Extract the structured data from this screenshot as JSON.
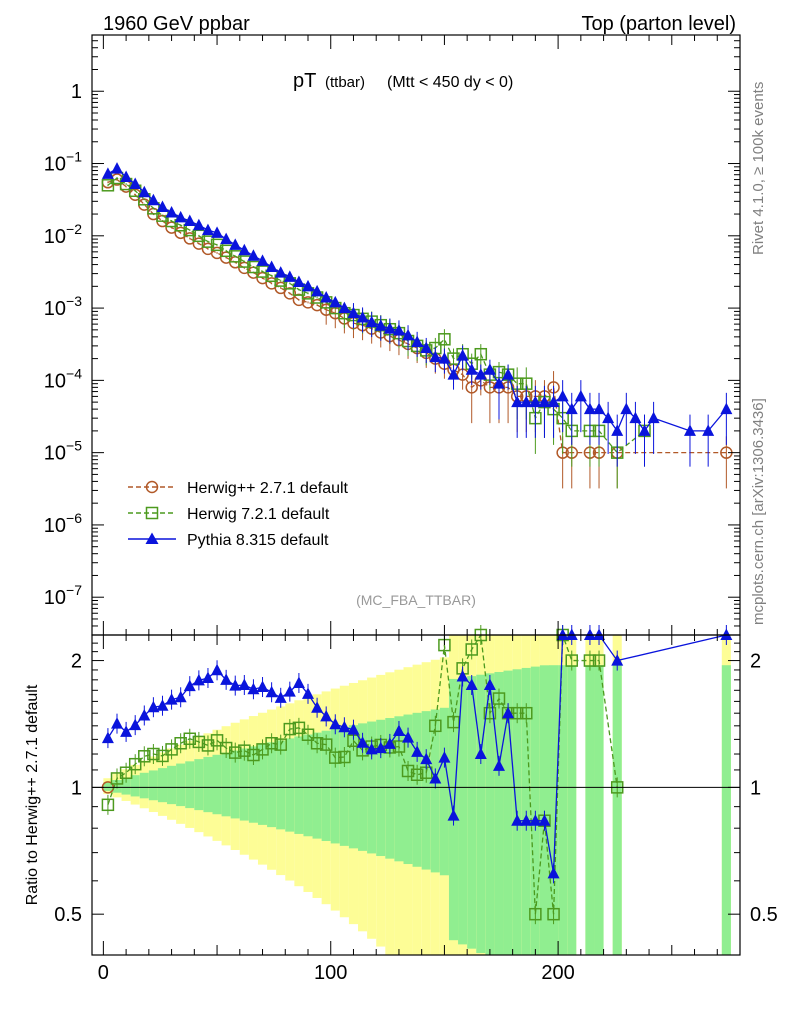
{
  "header": {
    "left_label": "1960 GeV ppbar",
    "right_label": "Top (parton level)"
  },
  "side_labels": {
    "rivet": "Rivet 4.1.0, ≥ 100k events",
    "mcplots": "mcplots.cern.ch [arXiv:1306.3436]"
  },
  "chart_data": {
    "type": "line",
    "title_main": "pT",
    "title_sub": "(ttbar)",
    "title_cut": "(Mtt < 450 dy < 0)",
    "analysis_tag": "(MC_FBA_TTBAR)",
    "ratio_ylabel": "Ratio to Herwig++ 2.7.1 default",
    "xlim": [
      -5,
      280
    ],
    "ylim_main": [
      3e-08,
      6
    ],
    "ylim_ratio": [
      0.4,
      2.3
    ],
    "y_log_main": true,
    "y_log_ratio": true,
    "x_ticks": [
      "0",
      "100",
      "200"
    ],
    "x_tick_values": [
      0,
      100,
      200
    ],
    "main_y_ticks": [
      {
        "v": 1,
        "mant": "1",
        "exp": ""
      },
      {
        "v": 0.1,
        "mant": "10",
        "exp": "−1"
      },
      {
        "v": 0.01,
        "mant": "10",
        "exp": "−2"
      },
      {
        "v": 0.001,
        "mant": "10",
        "exp": "−3"
      },
      {
        "v": 0.0001,
        "mant": "10",
        "exp": "−4"
      },
      {
        "v": 1e-05,
        "mant": "10",
        "exp": "−5"
      },
      {
        "v": 1e-06,
        "mant": "10",
        "exp": "−6"
      },
      {
        "v": 1e-07,
        "mant": "10",
        "exp": "−7"
      }
    ],
    "ratio_y_ticks": [
      {
        "v": 0.5,
        "label": "0.5"
      },
      {
        "v": 1,
        "label": "1"
      },
      {
        "v": 2,
        "label": "2"
      }
    ],
    "legend": [
      {
        "name": "Herwig++ 2.7.1 default",
        "color": "#b15928",
        "marker": "circle",
        "dash": true
      },
      {
        "name": "Herwig 7.2.1 default",
        "color": "#4c9a1e",
        "marker": "square",
        "dash": true
      },
      {
        "name": "Pythia 8.315 default",
        "color": "#0a14dc",
        "marker": "triangle",
        "dash": false
      }
    ],
    "series": [
      {
        "name": "Herwig++ 2.7.1 default",
        "x": [
          2,
          6,
          10,
          14,
          18,
          22,
          26,
          30,
          34,
          38,
          42,
          46,
          50,
          54,
          58,
          62,
          66,
          70,
          74,
          78,
          82,
          86,
          90,
          94,
          98,
          102,
          106,
          110,
          114,
          118,
          122,
          126,
          130,
          134,
          138,
          142,
          146,
          150,
          154,
          158,
          162,
          166,
          170,
          174,
          178,
          182,
          186,
          190,
          194,
          198,
          202,
          206,
          214,
          218,
          226,
          274
        ],
        "y": [
          0.055,
          0.06,
          0.048,
          0.037,
          0.027,
          0.02,
          0.016,
          0.013,
          0.011,
          0.0092,
          0.0078,
          0.0066,
          0.0058,
          0.005,
          0.0043,
          0.0036,
          0.0031,
          0.0026,
          0.0022,
          0.0019,
          0.0016,
          0.0013,
          0.0012,
          0.0011,
          0.00095,
          0.00085,
          0.00072,
          0.00062,
          0.00058,
          0.00052,
          0.00046,
          0.00041,
          0.00036,
          0.00032,
          0.00028,
          0.00024,
          0.0002,
          0.00017,
          0.00014,
          0.00012,
          8e-05,
          0.0001,
          8e-05,
          8e-05,
          8e-05,
          6e-05,
          6e-05,
          6e-05,
          6e-05,
          8e-05,
          1e-05,
          1e-05,
          1e-05,
          1e-05,
          1e-05,
          1e-05
        ]
      },
      {
        "name": "Herwig 7.2.1 default",
        "x": [
          2,
          6,
          10,
          14,
          18,
          22,
          26,
          30,
          34,
          38,
          42,
          46,
          50,
          54,
          58,
          62,
          66,
          70,
          74,
          78,
          82,
          86,
          90,
          94,
          98,
          102,
          106,
          110,
          114,
          118,
          122,
          126,
          130,
          134,
          138,
          142,
          146,
          150,
          154,
          158,
          162,
          166,
          170,
          174,
          178,
          182,
          186,
          190,
          194,
          198,
          202,
          206,
          214,
          218,
          226,
          238
        ],
        "y": [
          0.05,
          0.063,
          0.052,
          0.042,
          0.032,
          0.024,
          0.019,
          0.016,
          0.014,
          0.012,
          0.01,
          0.0083,
          0.0075,
          0.0062,
          0.0052,
          0.0044,
          0.0037,
          0.0032,
          0.0028,
          0.0024,
          0.0022,
          0.0018,
          0.0016,
          0.0014,
          0.0012,
          0.001,
          0.00085,
          0.0008,
          0.00071,
          0.00065,
          0.00058,
          0.00051,
          0.00045,
          0.00035,
          0.0003,
          0.00026,
          0.00028,
          0.00037,
          0.0002,
          0.00023,
          0.00017,
          0.00023,
          0.00012,
          0.00013,
          0.00012,
          9e-05,
          9e-05,
          3e-05,
          5e-05,
          4e-05,
          3e-05,
          2e-05,
          2e-05,
          2e-05,
          1e-05,
          2e-05
        ]
      },
      {
        "name": "Pythia 8.315 default",
        "x": [
          2,
          6,
          10,
          14,
          18,
          22,
          26,
          30,
          34,
          38,
          42,
          46,
          50,
          54,
          58,
          62,
          66,
          70,
          74,
          78,
          82,
          86,
          90,
          94,
          98,
          102,
          106,
          110,
          114,
          118,
          122,
          126,
          130,
          134,
          138,
          142,
          146,
          150,
          154,
          158,
          162,
          166,
          170,
          174,
          178,
          182,
          186,
          190,
          194,
          198,
          202,
          206,
          210,
          214,
          218,
          222,
          226,
          230,
          234,
          238,
          242,
          258,
          266,
          274
        ],
        "y": [
          0.072,
          0.085,
          0.065,
          0.052,
          0.04,
          0.031,
          0.025,
          0.021,
          0.018,
          0.016,
          0.014,
          0.012,
          0.011,
          0.009,
          0.0075,
          0.0063,
          0.0053,
          0.0045,
          0.0037,
          0.0031,
          0.0027,
          0.0023,
          0.002,
          0.0017,
          0.0014,
          0.0012,
          0.001,
          0.00085,
          0.00074,
          0.00064,
          0.00057,
          0.00052,
          0.00049,
          0.00042,
          0.00034,
          0.00028,
          0.00021,
          0.0002,
          0.00012,
          0.00022,
          0.00014,
          0.00012,
          0.00014,
          9e-05,
          0.00012,
          5e-05,
          5e-05,
          5e-05,
          5e-05,
          5e-05,
          6e-05,
          4e-05,
          6e-05,
          4e-05,
          4e-05,
          3e-05,
          2e-05,
          4e-05,
          3e-05,
          2e-05,
          3e-05,
          2e-05,
          2e-05,
          4e-05
        ]
      }
    ]
  }
}
